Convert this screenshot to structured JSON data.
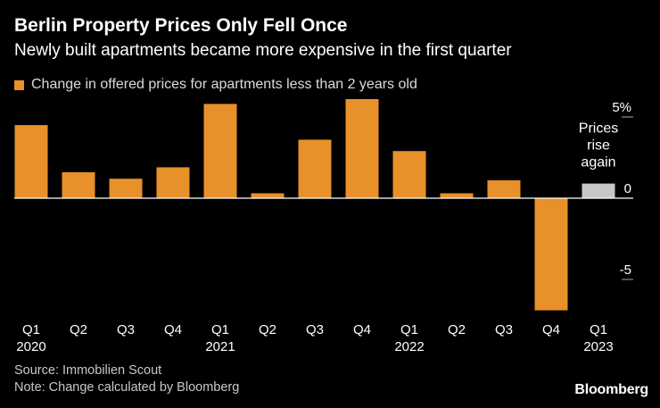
{
  "title": "Berlin Property Prices Only Fell Once",
  "subtitle": "Newly built apartments became more expensive in the first quarter",
  "legend": {
    "label": "Change in offered prices for apartments less than 2 years old"
  },
  "colors": {
    "bar": "#e8902a",
    "highlight_bar": "#c8c8c8",
    "zero_line": "#ffffff",
    "tick_line": "#aaaaaa",
    "text": "#ffffff"
  },
  "chart_data": {
    "type": "bar",
    "title": "Berlin Property Prices Only Fell Once",
    "ylabel": "",
    "xlabel": "",
    "ylim": [
      -6.6,
      6.6
    ],
    "categories": [
      "Q1",
      "Q2",
      "Q3",
      "Q4",
      "Q1",
      "Q2",
      "Q3",
      "Q4",
      "Q1",
      "Q2",
      "Q3",
      "Q4",
      "Q1"
    ],
    "years": [
      "2020",
      "",
      "",
      "",
      "2021",
      "",
      "",
      "",
      "2022",
      "",
      "",
      "",
      "2023"
    ],
    "values": [
      4.5,
      1.6,
      1.2,
      1.9,
      5.8,
      0.3,
      3.6,
      6.1,
      2.9,
      0.3,
      1.1,
      -6.9,
      0.9
    ],
    "highlight_index": 12,
    "y_ticks": [
      {
        "value": 5,
        "label": "5%"
      },
      {
        "value": 0,
        "label": "0"
      },
      {
        "value": -5,
        "label": "-5"
      }
    ],
    "annotation": {
      "lines": [
        "Prices",
        "rise",
        "again"
      ],
      "bar_index": 12
    }
  },
  "footer": {
    "source": "Source: Immobilien Scout",
    "note": "Note: Change calculated by Bloomberg",
    "brand": "Bloomberg"
  }
}
